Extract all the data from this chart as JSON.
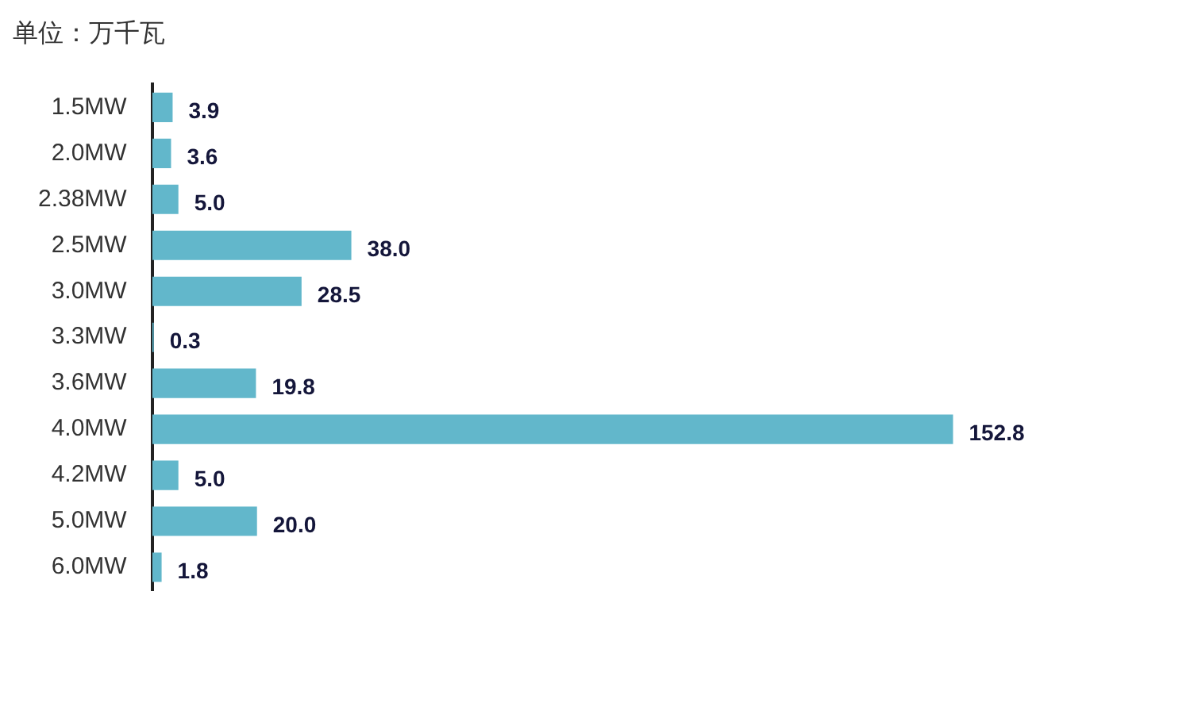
{
  "chart_data": {
    "type": "bar",
    "orientation": "horizontal",
    "title": "单位：万千瓦",
    "categories": [
      "1.5MW",
      "2.0MW",
      "2.38MW",
      "2.5MW",
      "3.0MW",
      "3.3MW",
      "3.6MW",
      "4.0MW",
      "4.2MW",
      "5.0MW",
      "6.0MW"
    ],
    "values": [
      3.9,
      3.6,
      5.0,
      38.0,
      28.5,
      0.3,
      19.8,
      152.8,
      5.0,
      20.0,
      1.8
    ],
    "value_labels": [
      "3.9",
      "3.6",
      "5.0",
      "38.0",
      "28.5",
      "0.3",
      "19.8",
      "152.8",
      "5.0",
      "20.0",
      "1.8"
    ],
    "color": "#62b7cb",
    "tick_labels": "y"
  }
}
